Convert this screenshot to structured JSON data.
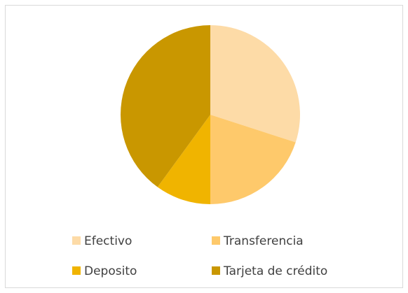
{
  "chart_data": {
    "type": "pie",
    "categories": [
      "Efectivo",
      "Transferencia",
      "Deposito",
      "Tarjeta de crédito"
    ],
    "values": [
      30,
      20,
      10,
      40
    ],
    "colors": [
      "#fddba7",
      "#fec96b",
      "#f0b400",
      "#c99700"
    ],
    "legend": "bottom"
  }
}
